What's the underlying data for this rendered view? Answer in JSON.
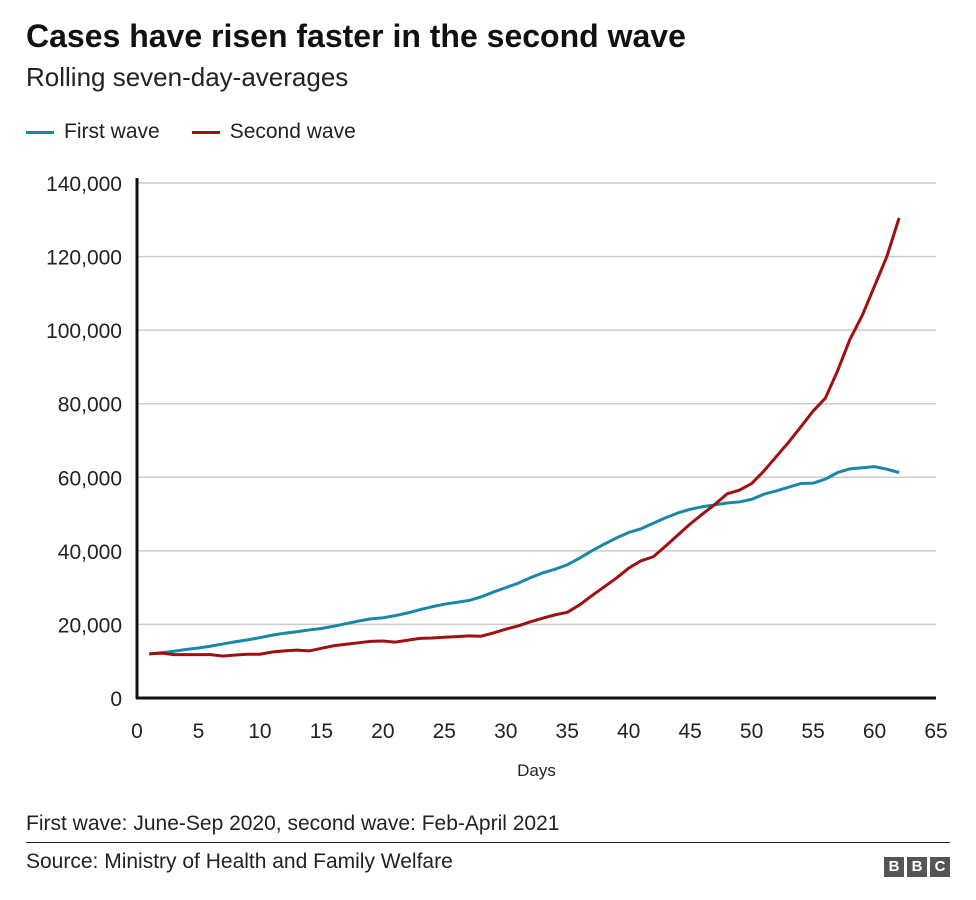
{
  "title": "Cases have risen faster in the second wave",
  "subtitle": "Rolling seven-day-averages",
  "note": "First wave: June-Sep 2020, second wave: Feb-April 2021",
  "source": "Source: Ministry of Health and Family Welfare",
  "logo": "BBC",
  "chart_data": {
    "type": "line",
    "xlabel": "Days",
    "ylabel": "",
    "xlim": [
      0,
      65
    ],
    "ylim": [
      0,
      140000
    ],
    "xticks": [
      0,
      5,
      10,
      15,
      20,
      25,
      30,
      35,
      40,
      45,
      50,
      55,
      60,
      65
    ],
    "yticks": [
      0,
      20000,
      40000,
      60000,
      80000,
      100000,
      120000,
      140000
    ],
    "ytick_labels": [
      "0",
      "20,000",
      "40,000",
      "60,000",
      "80,000",
      "100,000",
      "120,000",
      "140,000"
    ],
    "grid": "horizontal",
    "legend": "top-left",
    "x": [
      1,
      2,
      3,
      4,
      5,
      6,
      7,
      8,
      9,
      10,
      11,
      12,
      13,
      14,
      15,
      16,
      17,
      18,
      19,
      20,
      21,
      22,
      23,
      24,
      25,
      26,
      27,
      28,
      29,
      30,
      31,
      32,
      33,
      34,
      35,
      36,
      37,
      38,
      39,
      40,
      41,
      42,
      43,
      44,
      45,
      46,
      47,
      48,
      49,
      50,
      51,
      52,
      53,
      54,
      55,
      56,
      57,
      58,
      59,
      60,
      61,
      62
    ],
    "series": [
      {
        "name": "First wave",
        "color": "#1a86a8",
        "values": [
          12000,
          12300,
          12700,
          13200,
          13600,
          14100,
          14700,
          15300,
          15800,
          16400,
          17100,
          17600,
          18000,
          18500,
          18900,
          19500,
          20200,
          20900,
          21500,
          21800,
          22400,
          23100,
          24000,
          24800,
          25500,
          26000,
          26500,
          27500,
          28800,
          30000,
          31200,
          32700,
          34000,
          35000,
          36200,
          38000,
          40000,
          41800,
          43500,
          45000,
          46000,
          47500,
          49000,
          50300,
          51300,
          52000,
          52500,
          53000,
          53300,
          54000,
          55400,
          56300,
          57300,
          58300,
          58400,
          59500,
          61300,
          62300,
          62600,
          62900,
          62200,
          61300
        ]
      },
      {
        "name": "Second wave",
        "color": "#a01010",
        "values": [
          12000,
          12200,
          11800,
          11800,
          11800,
          11800,
          11400,
          11700,
          11900,
          11900,
          12500,
          12800,
          13000,
          12800,
          13500,
          14200,
          14600,
          15000,
          15400,
          15500,
          15200,
          15700,
          16200,
          16300,
          16500,
          16700,
          16900,
          16800,
          17700,
          18700,
          19600,
          20700,
          21700,
          22600,
          23300,
          25300,
          27800,
          30200,
          32600,
          35300,
          37300,
          38400,
          41300,
          44300,
          47300,
          50000,
          52600,
          55500,
          56500,
          58300,
          61700,
          65600,
          69500,
          73700,
          78000,
          81500,
          89000,
          97500,
          104000,
          112000,
          120000,
          130500
        ]
      }
    ]
  }
}
